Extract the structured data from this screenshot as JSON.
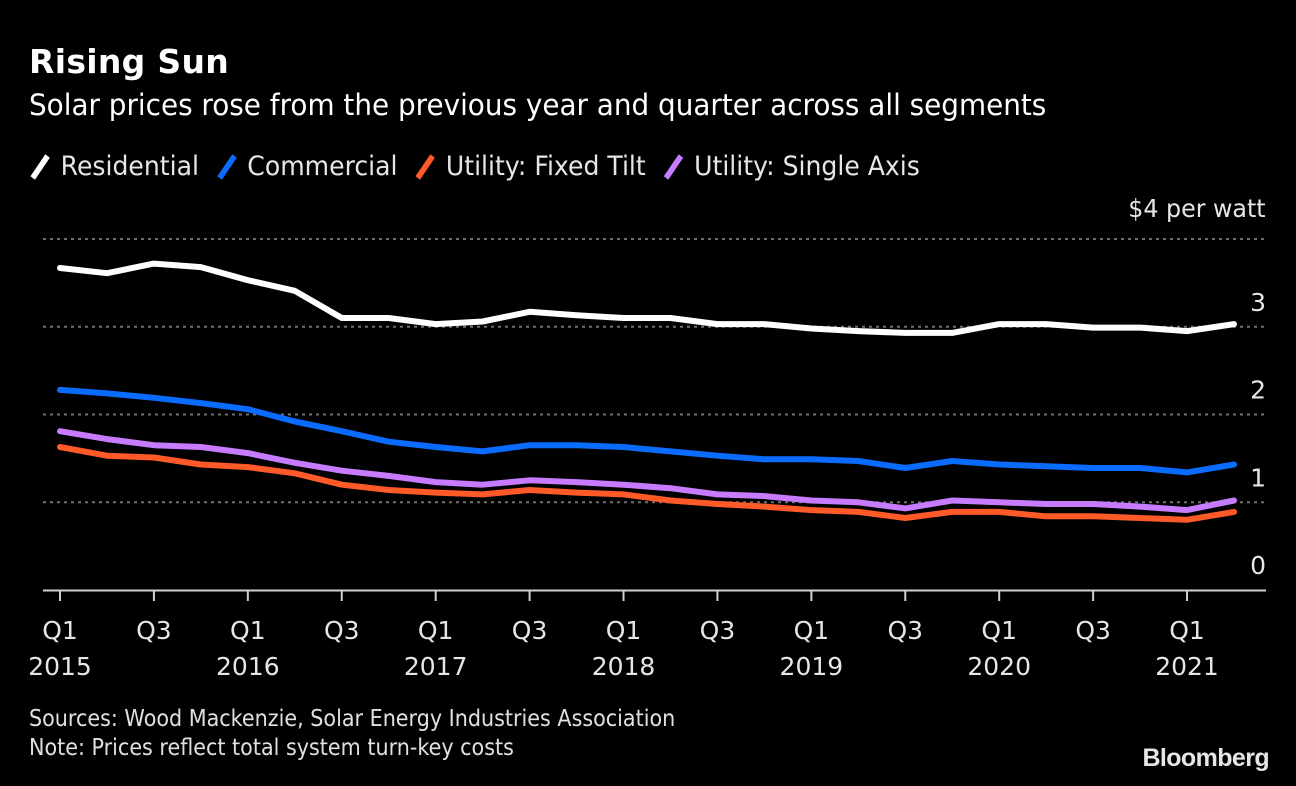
{
  "header": {
    "title": "Rising Sun",
    "subtitle": "Solar prices rose from the previous year and quarter across all segments"
  },
  "legend": [
    {
      "label": "Residential",
      "color": "#ffffff"
    },
    {
      "label": "Commercial",
      "color": "#0a6cff"
    },
    {
      "label": "Utility: Fixed Tilt",
      "color": "#ff5a27"
    },
    {
      "label": "Utility: Single Axis",
      "color": "#c77cff"
    }
  ],
  "unit_label": "$4 per watt",
  "footer": {
    "sources": "Sources: Wood Mackenzie, Solar Energy Industries Association",
    "note": "Note: Prices reflect total system turn-key costs",
    "brand": "Bloomberg"
  },
  "chart_data": {
    "type": "line",
    "title": "Rising Sun",
    "subtitle": "Solar prices rose from the previous year and quarter across all segments",
    "xlabel": "",
    "ylabel": "$ per watt",
    "ylim": [
      0,
      4
    ],
    "yticks": [
      0,
      1,
      2,
      3,
      4
    ],
    "ytick_labels": [
      "0",
      "1",
      "2",
      "3",
      "$4 per watt"
    ],
    "grid": true,
    "legend_position": "top-left",
    "x": [
      "Q1 2015",
      "Q2 2015",
      "Q3 2015",
      "Q4 2015",
      "Q1 2016",
      "Q2 2016",
      "Q3 2016",
      "Q4 2016",
      "Q1 2017",
      "Q2 2017",
      "Q3 2017",
      "Q4 2017",
      "Q1 2018",
      "Q2 2018",
      "Q3 2018",
      "Q4 2018",
      "Q1 2019",
      "Q2 2019",
      "Q3 2019",
      "Q4 2019",
      "Q1 2020",
      "Q2 2020",
      "Q3 2020",
      "Q4 2020",
      "Q1 2021",
      "Q2 2021"
    ],
    "xticks": [
      {
        "index": 0,
        "quarter": "Q1",
        "year": "2015"
      },
      {
        "index": 2,
        "quarter": "Q3",
        "year": ""
      },
      {
        "index": 4,
        "quarter": "Q1",
        "year": "2016"
      },
      {
        "index": 6,
        "quarter": "Q3",
        "year": ""
      },
      {
        "index": 8,
        "quarter": "Q1",
        "year": "2017"
      },
      {
        "index": 10,
        "quarter": "Q3",
        "year": ""
      },
      {
        "index": 12,
        "quarter": "Q1",
        "year": "2018"
      },
      {
        "index": 14,
        "quarter": "Q3",
        "year": ""
      },
      {
        "index": 16,
        "quarter": "Q1",
        "year": "2019"
      },
      {
        "index": 18,
        "quarter": "Q3",
        "year": ""
      },
      {
        "index": 20,
        "quarter": "Q1",
        "year": "2020"
      },
      {
        "index": 22,
        "quarter": "Q3",
        "year": ""
      },
      {
        "index": 24,
        "quarter": "Q1",
        "year": "2021"
      }
    ],
    "series": [
      {
        "name": "Residential",
        "color": "#ffffff",
        "values": [
          3.67,
          3.61,
          3.72,
          3.68,
          3.53,
          3.41,
          3.1,
          3.1,
          3.03,
          3.06,
          3.17,
          3.13,
          3.1,
          3.1,
          3.03,
          3.03,
          2.98,
          2.95,
          2.93,
          2.93,
          3.03,
          3.03,
          2.99,
          2.99,
          2.95,
          3.03
        ]
      },
      {
        "name": "Commercial",
        "color": "#0a6cff",
        "values": [
          2.28,
          2.24,
          2.19,
          2.13,
          2.06,
          1.92,
          1.81,
          1.69,
          1.63,
          1.58,
          1.65,
          1.65,
          1.63,
          1.58,
          1.53,
          1.49,
          1.49,
          1.47,
          1.39,
          1.47,
          1.43,
          1.41,
          1.39,
          1.39,
          1.34,
          1.43
        ]
      },
      {
        "name": "Utility: Fixed Tilt",
        "color": "#ff5a27",
        "values": [
          1.63,
          1.53,
          1.51,
          1.43,
          1.4,
          1.33,
          1.2,
          1.14,
          1.11,
          1.09,
          1.14,
          1.11,
          1.09,
          1.02,
          0.98,
          0.95,
          0.91,
          0.89,
          0.82,
          0.89,
          0.89,
          0.84,
          0.84,
          0.82,
          0.8,
          0.89
        ]
      },
      {
        "name": "Utility: Single Axis",
        "color": "#c77cff",
        "values": [
          1.81,
          1.72,
          1.65,
          1.63,
          1.56,
          1.45,
          1.36,
          1.3,
          1.23,
          1.2,
          1.25,
          1.23,
          1.2,
          1.16,
          1.09,
          1.07,
          1.02,
          1.0,
          0.93,
          1.02,
          1.0,
          0.98,
          0.98,
          0.95,
          0.91,
          1.02
        ]
      }
    ]
  }
}
